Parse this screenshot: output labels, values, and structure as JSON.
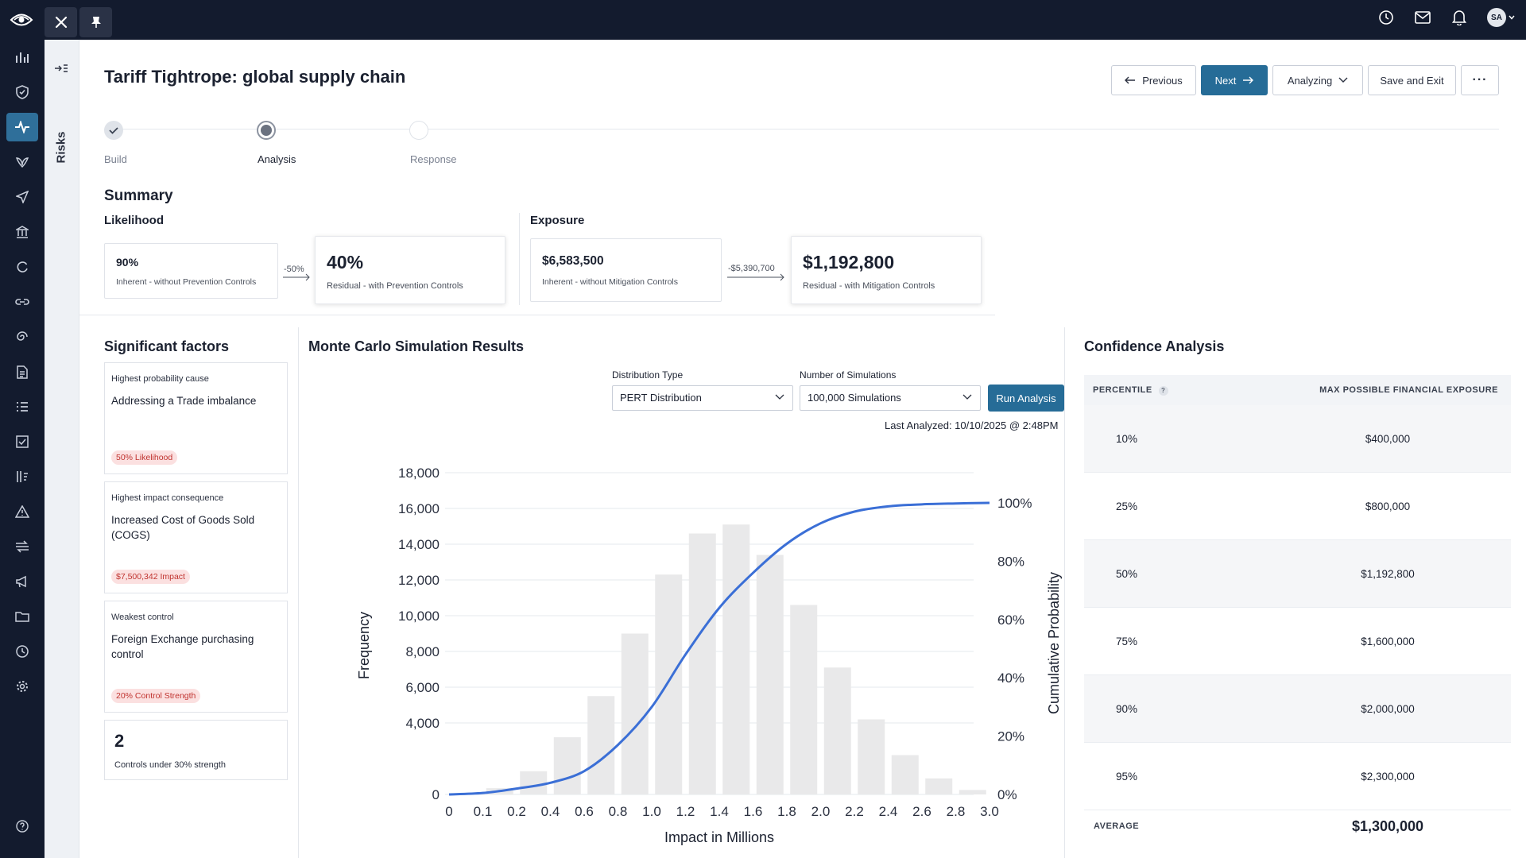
{
  "topbar": {
    "avatar_initials": "SA"
  },
  "subrail": {
    "label": "Risks"
  },
  "page": {
    "title": "Tariff Tightrope: global supply chain"
  },
  "actions": {
    "previous": "Previous",
    "next": "Next",
    "status": "Analyzing",
    "save_exit": "Save and Exit",
    "more": "···"
  },
  "stepper": {
    "steps": [
      {
        "label": "Build",
        "state": "done"
      },
      {
        "label": "Analysis",
        "state": "current"
      },
      {
        "label": "Response",
        "state": "todo"
      }
    ]
  },
  "summary": {
    "title": "Summary",
    "likelihood": {
      "title": "Likelihood",
      "inherent_value": "90%",
      "inherent_caption": "Inherent - without Prevention Controls",
      "delta": "-50%",
      "residual_value": "40%",
      "residual_caption": "Residual - with Prevention Controls"
    },
    "exposure": {
      "title": "Exposure",
      "inherent_value": "$6,583,500",
      "inherent_caption": "Inherent - without Mitigation Controls",
      "delta": "-$5,390,700",
      "residual_value": "$1,192,800",
      "residual_caption": "Residual - with Mitigation Controls"
    }
  },
  "factors": {
    "title": "Significant  factors",
    "cards": [
      {
        "caption": "Highest probability cause",
        "title": "Addressing a Trade imbalance",
        "pill": "50% Likelihood"
      },
      {
        "caption": "Highest impact consequence",
        "title": "Increased Cost of Goods Sold (COGS)",
        "pill": "$7,500,342  Impact"
      },
      {
        "caption": "Weakest control",
        "title": "Foreign Exchange purchasing control",
        "pill": "20% Control Strength"
      }
    ],
    "controls_count": "2",
    "controls_caption": "Controls under 30% strength"
  },
  "monte_carlo": {
    "title": "Monte Carlo Simulation Results",
    "distribution_label": "Distribution Type",
    "distribution_value": "PERT Distribution",
    "simulations_label": "Number of Simulations",
    "simulations_value": "100,000 Simulations",
    "run_button": "Run Analysis",
    "last_analyzed": "Last Analyzed: 10/10/2025 @ 2:48PM"
  },
  "chart_data": {
    "type": "bar",
    "xlabel": "Impact in Millions",
    "ylabel": "Frequency",
    "y2label": "Cumulative Probability",
    "ylim": [
      0,
      18000
    ],
    "y2lim": [
      0,
      100
    ],
    "grid": true,
    "x_ticks": [
      "0",
      "0.1",
      "0.2",
      "0.4",
      "0.6",
      "0.8",
      "1.0",
      "1.2",
      "1.4",
      "1.6",
      "1.8",
      "2.0",
      "2.2",
      "2.4",
      "2.6",
      "2.8",
      "3.0"
    ],
    "y_ticks": [
      "0",
      "4,000",
      "6,000",
      "8,000",
      "10,000",
      "12,000",
      "14,000",
      "16,000",
      "18,000"
    ],
    "y2_ticks": [
      "0%",
      "20%",
      "40%",
      "60%",
      "80%",
      "100%"
    ],
    "bars": [
      {
        "x": 0.1,
        "value": 350
      },
      {
        "x": 0.2,
        "value": 1300
      },
      {
        "x": 0.4,
        "value": 3200
      },
      {
        "x": 0.6,
        "value": 5500
      },
      {
        "x": 0.8,
        "value": 9000
      },
      {
        "x": 1.0,
        "value": 12300
      },
      {
        "x": 1.2,
        "value": 14600
      },
      {
        "x": 1.4,
        "value": 15100
      },
      {
        "x": 1.6,
        "value": 13400
      },
      {
        "x": 1.8,
        "value": 10600
      },
      {
        "x": 2.0,
        "value": 7100
      },
      {
        "x": 2.2,
        "value": 4200
      },
      {
        "x": 2.4,
        "value": 2200
      },
      {
        "x": 2.6,
        "value": 900
      },
      {
        "x": 2.8,
        "value": 250
      }
    ],
    "cumulative": [
      {
        "x": 0,
        "value": 0
      },
      {
        "x": 0.1,
        "value": 0.5
      },
      {
        "x": 0.2,
        "value": 2
      },
      {
        "x": 0.4,
        "value": 4
      },
      {
        "x": 0.6,
        "value": 8
      },
      {
        "x": 0.8,
        "value": 17
      },
      {
        "x": 1.0,
        "value": 30
      },
      {
        "x": 1.2,
        "value": 48
      },
      {
        "x": 1.4,
        "value": 64
      },
      {
        "x": 1.6,
        "value": 76
      },
      {
        "x": 1.8,
        "value": 86
      },
      {
        "x": 2.0,
        "value": 93
      },
      {
        "x": 2.2,
        "value": 97
      },
      {
        "x": 2.4,
        "value": 98.8
      },
      {
        "x": 2.6,
        "value": 99.5
      },
      {
        "x": 2.8,
        "value": 99.8
      },
      {
        "x": 3.0,
        "value": 100
      }
    ]
  },
  "confidence": {
    "title": "Confidence Analysis",
    "col_percentile": "PERCENTILE",
    "help": "?",
    "col_exposure": "MAX POSSIBLE FINANCIAL EXPOSURE",
    "rows": [
      {
        "percentile": "10%",
        "value": "$400,000"
      },
      {
        "percentile": "25%",
        "value": "$800,000"
      },
      {
        "percentile": "50%",
        "value": "$1,192,800"
      },
      {
        "percentile": "75%",
        "value": "$1,600,000"
      },
      {
        "percentile": "90%",
        "value": "$2,000,000"
      },
      {
        "percentile": "95%",
        "value": "$2,300,000"
      }
    ],
    "average_label": "AVERAGE",
    "average_value": "$1,300,000"
  },
  "colors": {
    "navy": "#131b2e",
    "accent": "#266c97",
    "bar": "#e9e9ea",
    "line": "#3b6fd6",
    "pill_bg": "#fbe0e0",
    "pill_text": "#c0332f"
  }
}
